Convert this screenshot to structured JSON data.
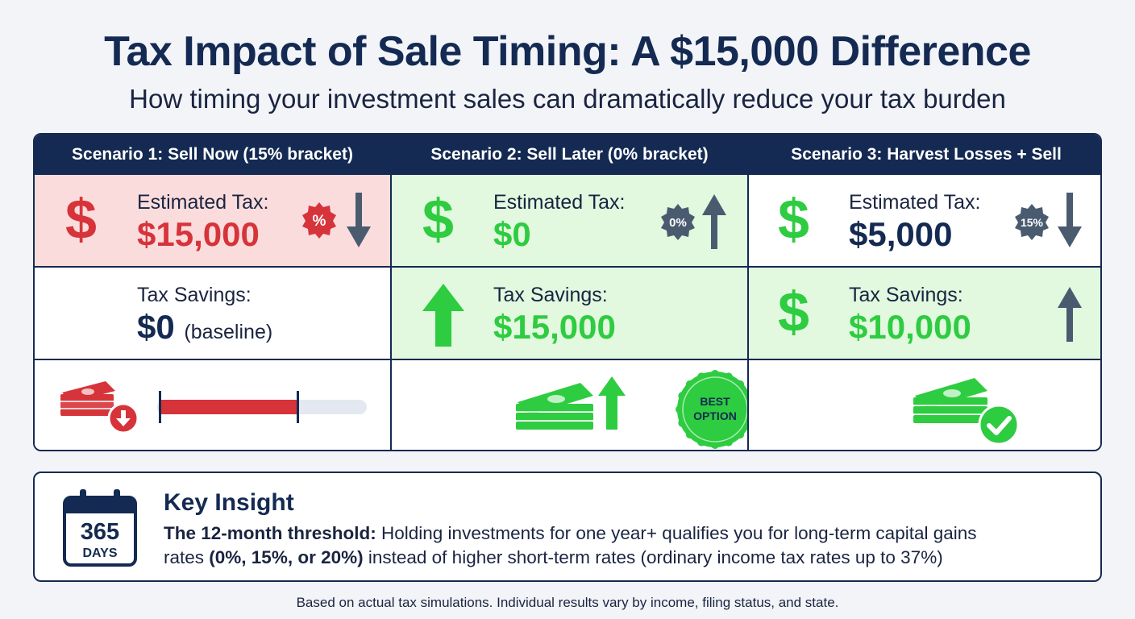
{
  "title": "Tax Impact of Sale Timing: A $15,000 Difference",
  "subtitle": "How timing your investment sales can dramatically reduce your tax burden",
  "colors": {
    "navy": "#142a52",
    "red": "#d6343a",
    "green": "#2ecc40",
    "slate": "#4a5b70",
    "red_bg": "#fbdcdc",
    "green_bg": "#e2f8df"
  },
  "scenarios": [
    {
      "header": "Scenario 1: Sell Now (15% bracket)",
      "tax_label": "Estimated Tax:",
      "tax_value": "$15,000",
      "tax_badge": "%",
      "savings_label": "Tax Savings:",
      "savings_value": "$0",
      "savings_note": "(baseline)",
      "tax_bar_fill_fraction": 0.66
    },
    {
      "header": "Scenario 2: Sell Later (0% bracket)",
      "tax_label": "Estimated Tax:",
      "tax_value": "$0",
      "tax_badge": "0%",
      "savings_label": "Tax Savings:",
      "savings_value": "$15,000",
      "best_badge_line1": "BEST",
      "best_badge_line2": "OPTION"
    },
    {
      "header": "Scenario 3: Harvest Losses + Sell",
      "tax_label": "Estimated Tax:",
      "tax_value": "$5,000",
      "tax_badge": "15%",
      "savings_label": "Tax Savings:",
      "savings_value": "$10,000"
    }
  ],
  "insight": {
    "calendar_number": "365",
    "calendar_unit": "DAYS",
    "heading": "Key Insight",
    "line1_bold": "The 12-month threshold:",
    "line1_rest": " Holding investments for one year+ qualifies you for long-term capital gains",
    "line2_start": "rates ",
    "line2_bold": "(0%, 15%, or 20%)",
    "line2_rest": " instead of higher short-term rates (ordinary income tax rates up to 37%)"
  },
  "footnote": "Based on actual tax simulations. Individual results vary by income, filing status, and state.",
  "icons": [
    "dollar-sign-icon",
    "percent-badge-icon",
    "arrow-down-icon",
    "arrow-up-icon",
    "cash-stack-icon",
    "check-circle-icon",
    "calendar-icon",
    "best-option-seal-icon"
  ]
}
